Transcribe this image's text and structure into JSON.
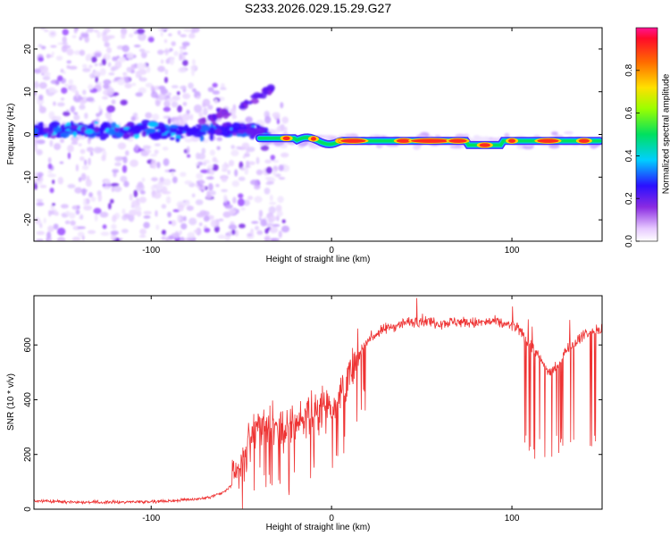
{
  "title": "S233.2026.029.15.29.G27",
  "chart_data": [
    {
      "type": "heatmap",
      "name": "spectrogram",
      "xlabel": "Height of straight line (km)",
      "ylabel": "Frequency (Hz)",
      "xlim": [
        -165,
        150
      ],
      "ylim": [
        -25,
        25
      ],
      "xticks": [
        -100,
        0,
        100
      ],
      "yticks": [
        -20,
        -10,
        0,
        10,
        20
      ],
      "colorbar": {
        "label": "Normalized spectral amplitude",
        "range": [
          0,
          1
        ],
        "ticks": [
          0.0,
          0.2,
          0.4,
          0.6,
          0.8
        ]
      },
      "ridge": {
        "description": "narrow high-amplitude band",
        "x_start": -40,
        "x_end": 150,
        "frequency_near": -1.5
      },
      "noise_region_x": [
        -165,
        -40
      ]
    },
    {
      "type": "line",
      "name": "snr",
      "xlabel": "Height of straight line (km)",
      "ylabel": "SNR (10 * v/v)",
      "xlim": [
        -165,
        150
      ],
      "ylim": [
        0,
        780
      ],
      "xticks": [
        -100,
        0,
        100
      ],
      "yticks": [
        0,
        200,
        400,
        600
      ],
      "series": [
        {
          "name": "SNR",
          "color": "#ee3333",
          "x": [
            -165,
            -150,
            -130,
            -110,
            -90,
            -80,
            -70,
            -60,
            -55,
            -50,
            -45,
            -40,
            -35,
            -30,
            -25,
            -20,
            -15,
            -10,
            -5,
            0,
            5,
            10,
            15,
            20,
            25,
            30,
            40,
            50,
            60,
            70,
            80,
            90,
            100,
            105,
            110,
            115,
            120,
            125,
            130,
            140,
            150
          ],
          "values": [
            30,
            28,
            25,
            27,
            30,
            35,
            40,
            60,
            90,
            150,
            260,
            320,
            300,
            280,
            290,
            310,
            340,
            360,
            380,
            380,
            420,
            480,
            560,
            620,
            640,
            660,
            680,
            690,
            680,
            685,
            680,
            685,
            670,
            650,
            600,
            560,
            500,
            520,
            580,
            640,
            660
          ]
        }
      ]
    }
  ]
}
